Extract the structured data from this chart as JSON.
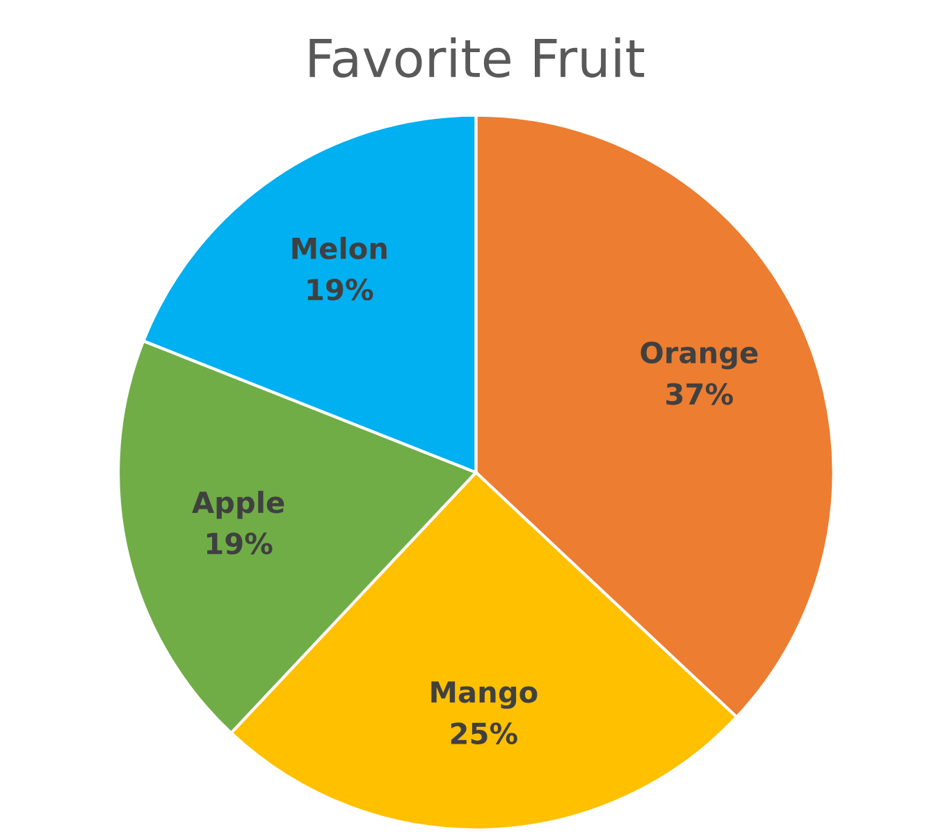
{
  "chart_data": {
    "type": "pie",
    "title": "Favorite Fruit",
    "categories": [
      "Orange",
      "Mango",
      "Apple",
      "Melon"
    ],
    "values": [
      37,
      25,
      19,
      19
    ],
    "colors": [
      "#ed7d31",
      "#ffc000",
      "#70ad47",
      "#00b0f0"
    ],
    "value_labels": [
      "37%",
      "25%",
      "19%",
      "19%"
    ],
    "legend": false
  }
}
